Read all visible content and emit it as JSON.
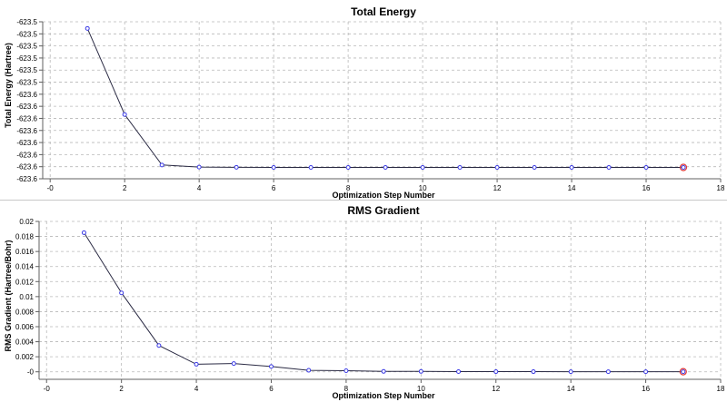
{
  "charts": {
    "energy": {
      "title": "Total Energy",
      "xlabel": "Optimization Step Number",
      "ylabel": "Total Energy (Hartree)"
    },
    "gradient": {
      "title": "RMS Gradient",
      "xlabel": "Optimization Step Number",
      "ylabel": "RMS Gradient (Hartree/Bohr)"
    }
  },
  "chart_data": [
    {
      "type": "line",
      "title": "Total Energy",
      "xlabel": "Optimization Step Number",
      "ylabel": "Total Energy (Hartree)",
      "x": [
        1,
        2,
        3,
        4,
        5,
        6,
        7,
        8,
        9,
        10,
        11,
        12,
        13,
        14,
        15,
        16,
        17
      ],
      "y": [
        -623.5055,
        -623.5768,
        -623.6186,
        -623.6203,
        -623.6205,
        -623.6206,
        -623.6206,
        -623.6206,
        -623.6206,
        -623.6206,
        -623.6206,
        -623.6206,
        -623.6206,
        -623.6206,
        -623.6206,
        -623.6206,
        -623.6206
      ],
      "xlim": [
        -0.2,
        18
      ],
      "ylim": [
        -623.63,
        -623.5
      ],
      "xticks": [
        0,
        2,
        4,
        6,
        8,
        10,
        12,
        14,
        16,
        18
      ],
      "xtick_labels": [
        "-0",
        "2",
        "4",
        "6",
        "8",
        "10",
        "12",
        "14",
        "16",
        "18"
      ],
      "yticks": [
        -623.5,
        -623.51,
        -623.52,
        -623.53,
        -623.54,
        -623.55,
        -623.56,
        -623.57,
        -623.58,
        -623.59,
        -623.6,
        -623.61,
        -623.62,
        -623.63
      ],
      "ytick_labels": [
        "-623.5",
        "-623.5",
        "-623.5",
        "-623.5",
        "-623.5",
        "-623.5",
        "-623.6",
        "-623.6",
        "-623.6",
        "-623.6",
        "-623.6",
        "-623.6",
        "-623.6",
        "-623.6"
      ],
      "grid": true,
      "highlighted_point": 17
    },
    {
      "type": "line",
      "title": "RMS Gradient",
      "xlabel": "Optimization Step Number",
      "ylabel": "RMS Gradient (Hartree/Bohr)",
      "x": [
        1,
        2,
        3,
        4,
        5,
        6,
        7,
        8,
        9,
        10,
        11,
        12,
        13,
        14,
        15,
        16,
        17
      ],
      "y": [
        0.0185,
        0.0105,
        0.0035,
        0.001,
        0.0011,
        0.0007,
        0.0002,
        0.00015,
        5e-05,
        5e-05,
        3e-05,
        2e-05,
        2e-05,
        1e-05,
        1e-05,
        1e-05,
        1e-05
      ],
      "xlim": [
        -0.2,
        18
      ],
      "ylim": [
        -0.001,
        0.02
      ],
      "xticks": [
        0,
        2,
        4,
        6,
        8,
        10,
        12,
        14,
        16,
        18
      ],
      "xtick_labels": [
        "-0",
        "2",
        "4",
        "6",
        "8",
        "10",
        "12",
        "14",
        "16",
        "18"
      ],
      "yticks": [
        0,
        0.002,
        0.004,
        0.006,
        0.008,
        0.01,
        0.012,
        0.014,
        0.016,
        0.018,
        0.02
      ],
      "ytick_labels": [
        "-0",
        "0.002",
        "0.004",
        "0.006",
        "0.008",
        "0.01",
        "0.012",
        "0.014",
        "0.016",
        "0.018",
        "0.02"
      ],
      "grid": true,
      "highlighted_point": 17
    }
  ]
}
